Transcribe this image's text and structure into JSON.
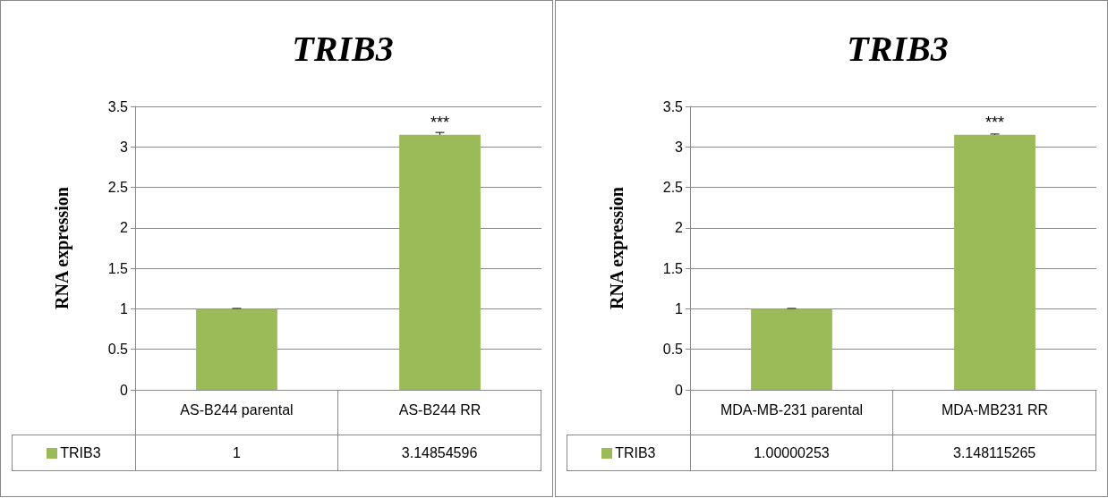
{
  "chart_data": [
    {
      "type": "bar",
      "title": "TRIB3",
      "ylabel": "RNA expression",
      "categories": [
        "AS-B244 parental",
        "AS-B244 RR"
      ],
      "series": [
        {
          "name": "TRIB3",
          "color": "#9bbb59",
          "values": [
            1,
            3.14854596
          ],
          "errors": [
            0.005,
            0.03
          ],
          "value_labels": [
            "1",
            "3.14854596"
          ]
        }
      ],
      "ylim": [
        0,
        3.5
      ],
      "yticks": [
        0,
        0.5,
        1,
        1.5,
        2,
        2.5,
        3,
        3.5
      ],
      "grid": "y",
      "legend": "bottom",
      "annotations": [
        {
          "text": "***",
          "x": "AS-B244 RR",
          "y": 3.2
        }
      ]
    },
    {
      "type": "bar",
      "title": "TRIB3",
      "ylabel": "RNA expression",
      "categories": [
        "MDA-MB-231 parental",
        "MDA-MB231 RR"
      ],
      "series": [
        {
          "name": "TRIB3",
          "color": "#9bbb59",
          "values": [
            1.00000253,
            3.148115265
          ],
          "errors": [
            0.005,
            0.01
          ],
          "value_labels": [
            "1.00000253",
            "3.148115265"
          ]
        }
      ],
      "ylim": [
        0,
        3.5
      ],
      "yticks": [
        0,
        0.5,
        1,
        1.5,
        2,
        2.5,
        3,
        3.5
      ],
      "grid": "y",
      "legend": "bottom",
      "annotations": [
        {
          "text": "***",
          "x": "MDA-MB231 RR",
          "y": 3.2
        }
      ]
    }
  ]
}
